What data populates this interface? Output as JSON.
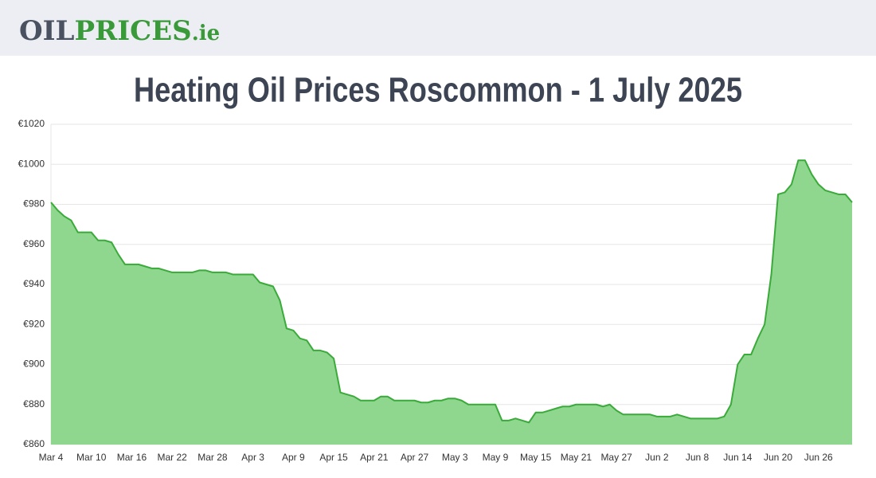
{
  "header": {
    "logo": {
      "part1": "OIL",
      "part2": "PRICES",
      "part3": ".ie"
    }
  },
  "chart_data": {
    "type": "area",
    "title": "Heating Oil Prices Roscommon - 1 July 2025",
    "color": "#3aaa3a",
    "fill_color": "#8fd68f",
    "grid": true,
    "ylim": [
      860,
      1020
    ],
    "yticks": [
      {
        "value": 860,
        "label": "€860"
      },
      {
        "value": 880,
        "label": "€880"
      },
      {
        "value": 900,
        "label": "€900"
      },
      {
        "value": 920,
        "label": "€920"
      },
      {
        "value": 940,
        "label": "€940"
      },
      {
        "value": 960,
        "label": "€960"
      },
      {
        "value": 980,
        "label": "€980"
      },
      {
        "value": 1000,
        "label": "€1000"
      },
      {
        "value": 1020,
        "label": "€1020"
      }
    ],
    "categories": [
      "Mar 4",
      null,
      null,
      null,
      null,
      null,
      "Mar 10",
      null,
      null,
      null,
      null,
      null,
      "Mar 16",
      null,
      null,
      null,
      null,
      null,
      "Mar 22",
      null,
      null,
      null,
      null,
      null,
      "Mar 28",
      null,
      null,
      null,
      null,
      null,
      "Apr 3",
      null,
      null,
      null,
      null,
      null,
      "Apr 9",
      null,
      null,
      null,
      null,
      null,
      "Apr 15",
      null,
      null,
      null,
      null,
      null,
      "Apr 21",
      null,
      null,
      null,
      null,
      null,
      "Apr 27",
      null,
      null,
      null,
      null,
      null,
      "May 3",
      null,
      null,
      null,
      null,
      null,
      "May 9",
      null,
      null,
      null,
      null,
      null,
      "May 15",
      null,
      null,
      null,
      null,
      null,
      "May 21",
      null,
      null,
      null,
      null,
      null,
      "May 27",
      null,
      null,
      null,
      null,
      null,
      "Jun 2",
      null,
      null,
      null,
      null,
      null,
      "Jun 8",
      null,
      null,
      null,
      null,
      null,
      "Jun 14",
      null,
      null,
      null,
      null,
      null,
      "Jun 20",
      null,
      null,
      null,
      null,
      null,
      "Jun 26",
      null,
      null,
      null,
      null,
      null
    ],
    "values": [
      981,
      977,
      974,
      972,
      966,
      966,
      966,
      962,
      962,
      961,
      955,
      950,
      950,
      950,
      949,
      948,
      948,
      947,
      946,
      946,
      946,
      946,
      947,
      947,
      946,
      946,
      946,
      945,
      945,
      945,
      945,
      941,
      940,
      939,
      932,
      918,
      917,
      913,
      912,
      907,
      907,
      906,
      903,
      886,
      885,
      884,
      882,
      882,
      882,
      884,
      884,
      882,
      882,
      882,
      882,
      881,
      881,
      882,
      882,
      883,
      883,
      882,
      880,
      880,
      880,
      880,
      880,
      872,
      872,
      873,
      872,
      871,
      876,
      876,
      877,
      878,
      879,
      879,
      880,
      880,
      880,
      880,
      879,
      880,
      877,
      875,
      875,
      875,
      875,
      875,
      874,
      874,
      874,
      875,
      874,
      873,
      873,
      873,
      873,
      873,
      874,
      880,
      900,
      905,
      905,
      913,
      920,
      945,
      985,
      986,
      990,
      1002,
      1002,
      995,
      990,
      987,
      986,
      985,
      985,
      981
    ]
  }
}
